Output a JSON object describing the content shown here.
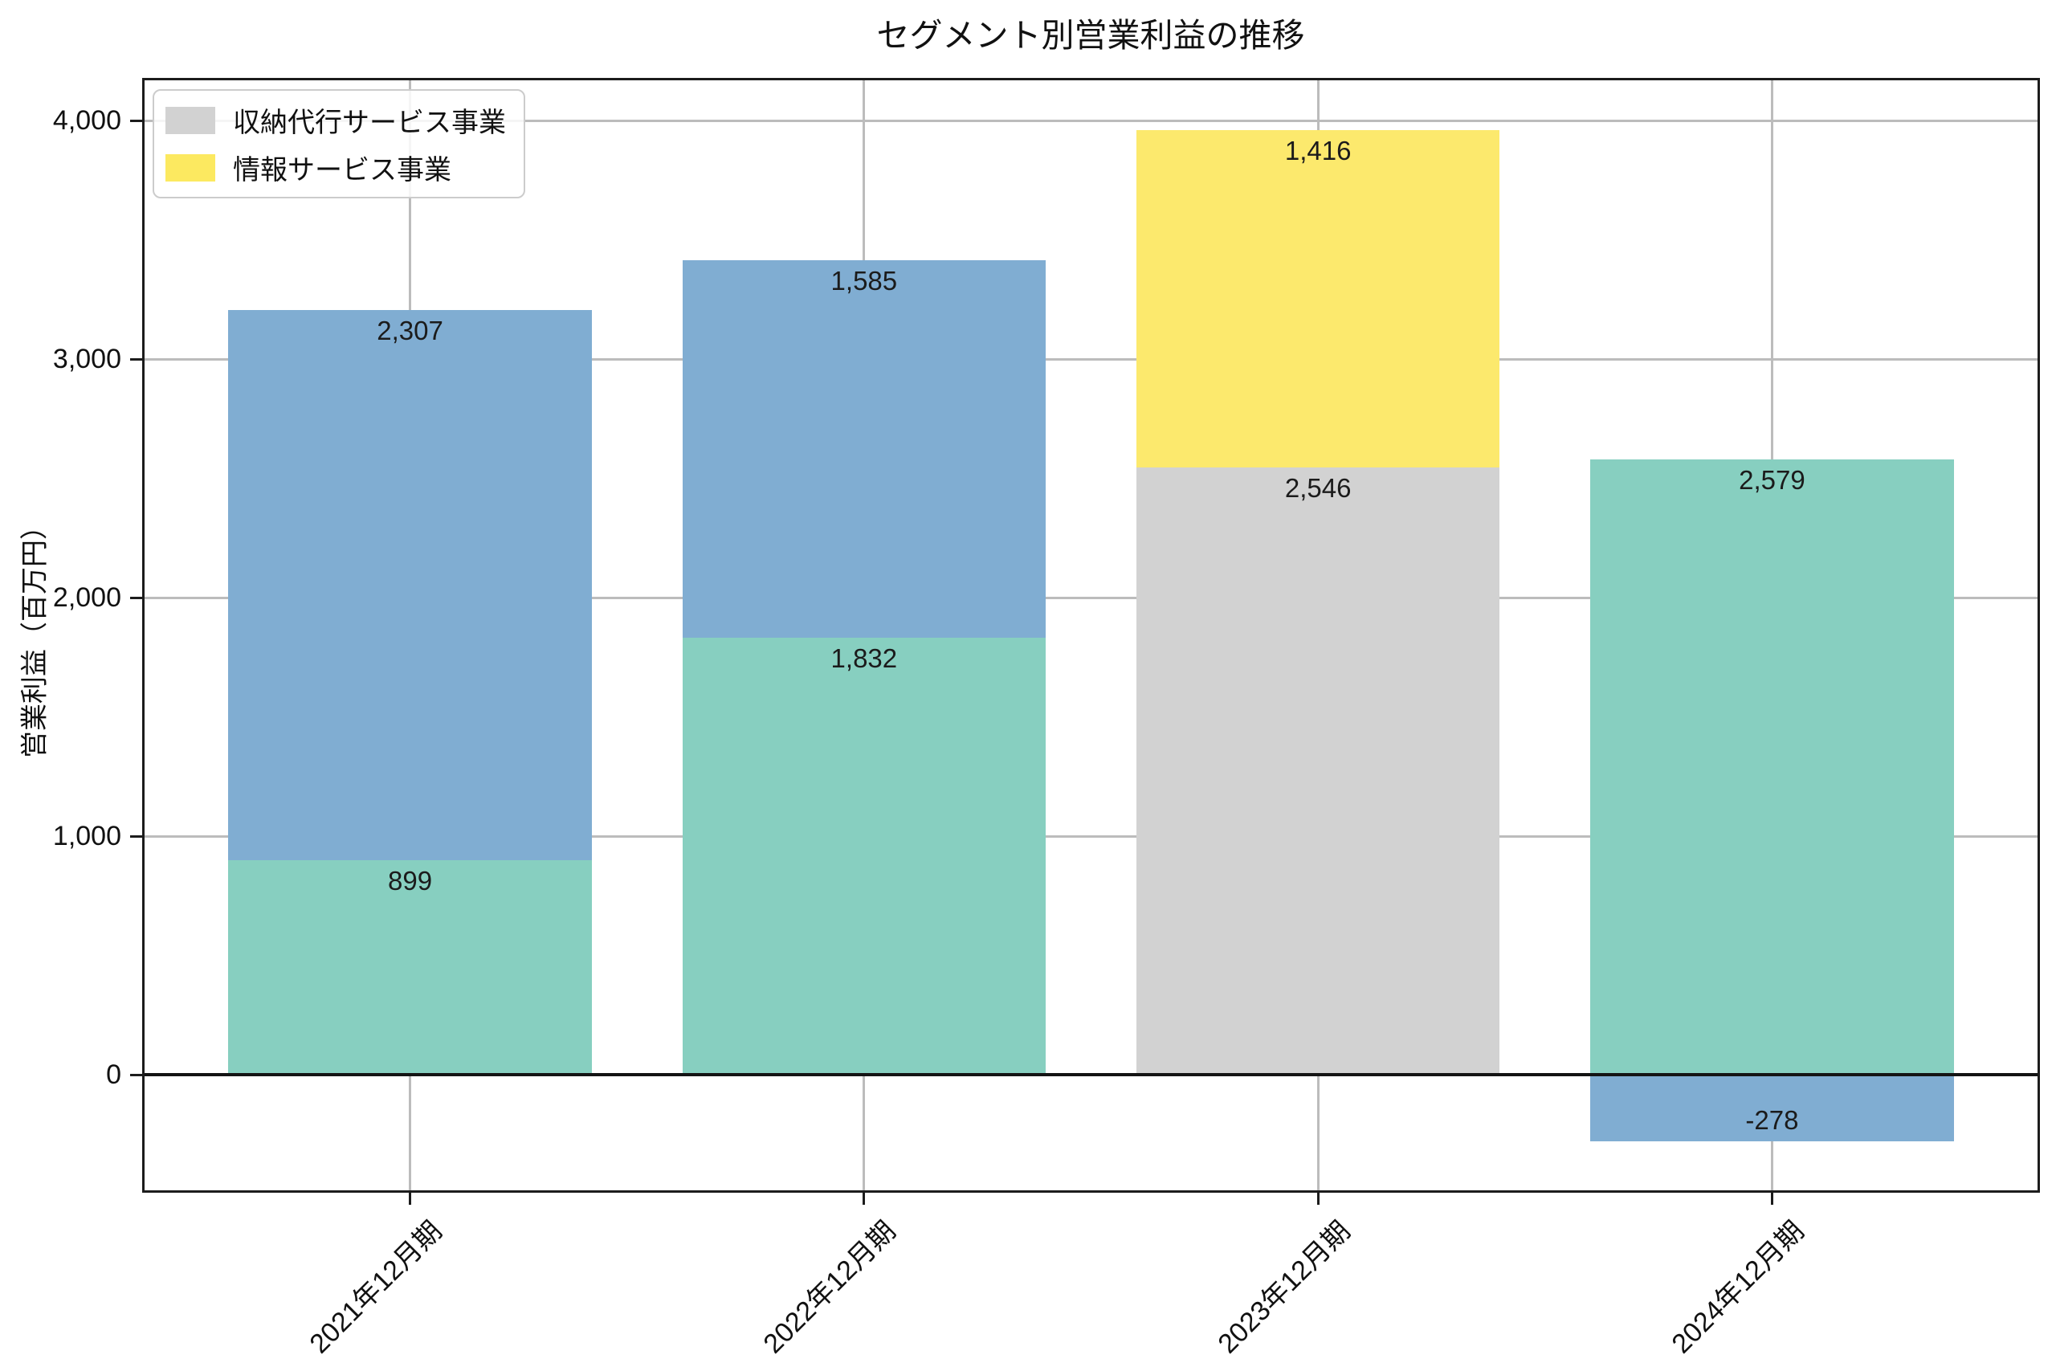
{
  "title": "セグメント別営業利益の推移",
  "y_axis_label": "営業利益（百万円）",
  "legend": {
    "position": "upper left",
    "entries": [
      {
        "label": "収納代行サービス事業",
        "color": "#d2d2d2"
      },
      {
        "label": "情報サービス事業",
        "color": "#fce960"
      }
    ]
  },
  "chart_data": {
    "type": "bar",
    "stacked": true,
    "title": "セグメント別営業利益の推移",
    "xlabel": "",
    "ylabel": "営業利益（百万円）",
    "categories": [
      "2021年12月期",
      "2022年12月期",
      "2023年12月期",
      "2024年12月期"
    ],
    "series": [
      {
        "name": "unlabeled-teal-segment",
        "color": "#87cfc0",
        "values": [
          899,
          1832,
          0,
          2579
        ]
      },
      {
        "name": "unlabeled-blue-segment",
        "color": "#80add2",
        "values": [
          2307,
          1585,
          0,
          -278
        ]
      },
      {
        "name": "収納代行サービス事業",
        "color": "#d2d2d2",
        "values": [
          0,
          0,
          2546,
          0
        ]
      },
      {
        "name": "情報サービス事業",
        "color": "#fce96d",
        "values": [
          0,
          0,
          1416,
          0
        ]
      }
    ],
    "bar_labels": [
      {
        "category_index": 0,
        "values_shown": [
          "899",
          "2,307"
        ]
      },
      {
        "category_index": 1,
        "values_shown": [
          "1,832",
          "1,585"
        ]
      },
      {
        "category_index": 2,
        "values_shown": [
          "2,546",
          "1,416"
        ]
      },
      {
        "category_index": 3,
        "values_shown": [
          "2,579",
          "-278"
        ]
      }
    ],
    "yticks": {
      "values": [
        0,
        1000,
        2000,
        3000,
        4000
      ],
      "labels": [
        "0",
        "1,000",
        "2,000",
        "3,000",
        "4,000"
      ]
    },
    "ylim": [
      -495,
      4180
    ],
    "bar_width": 0.8,
    "grid": true,
    "zero_line": true,
    "xtick_rotation_deg": 45
  }
}
